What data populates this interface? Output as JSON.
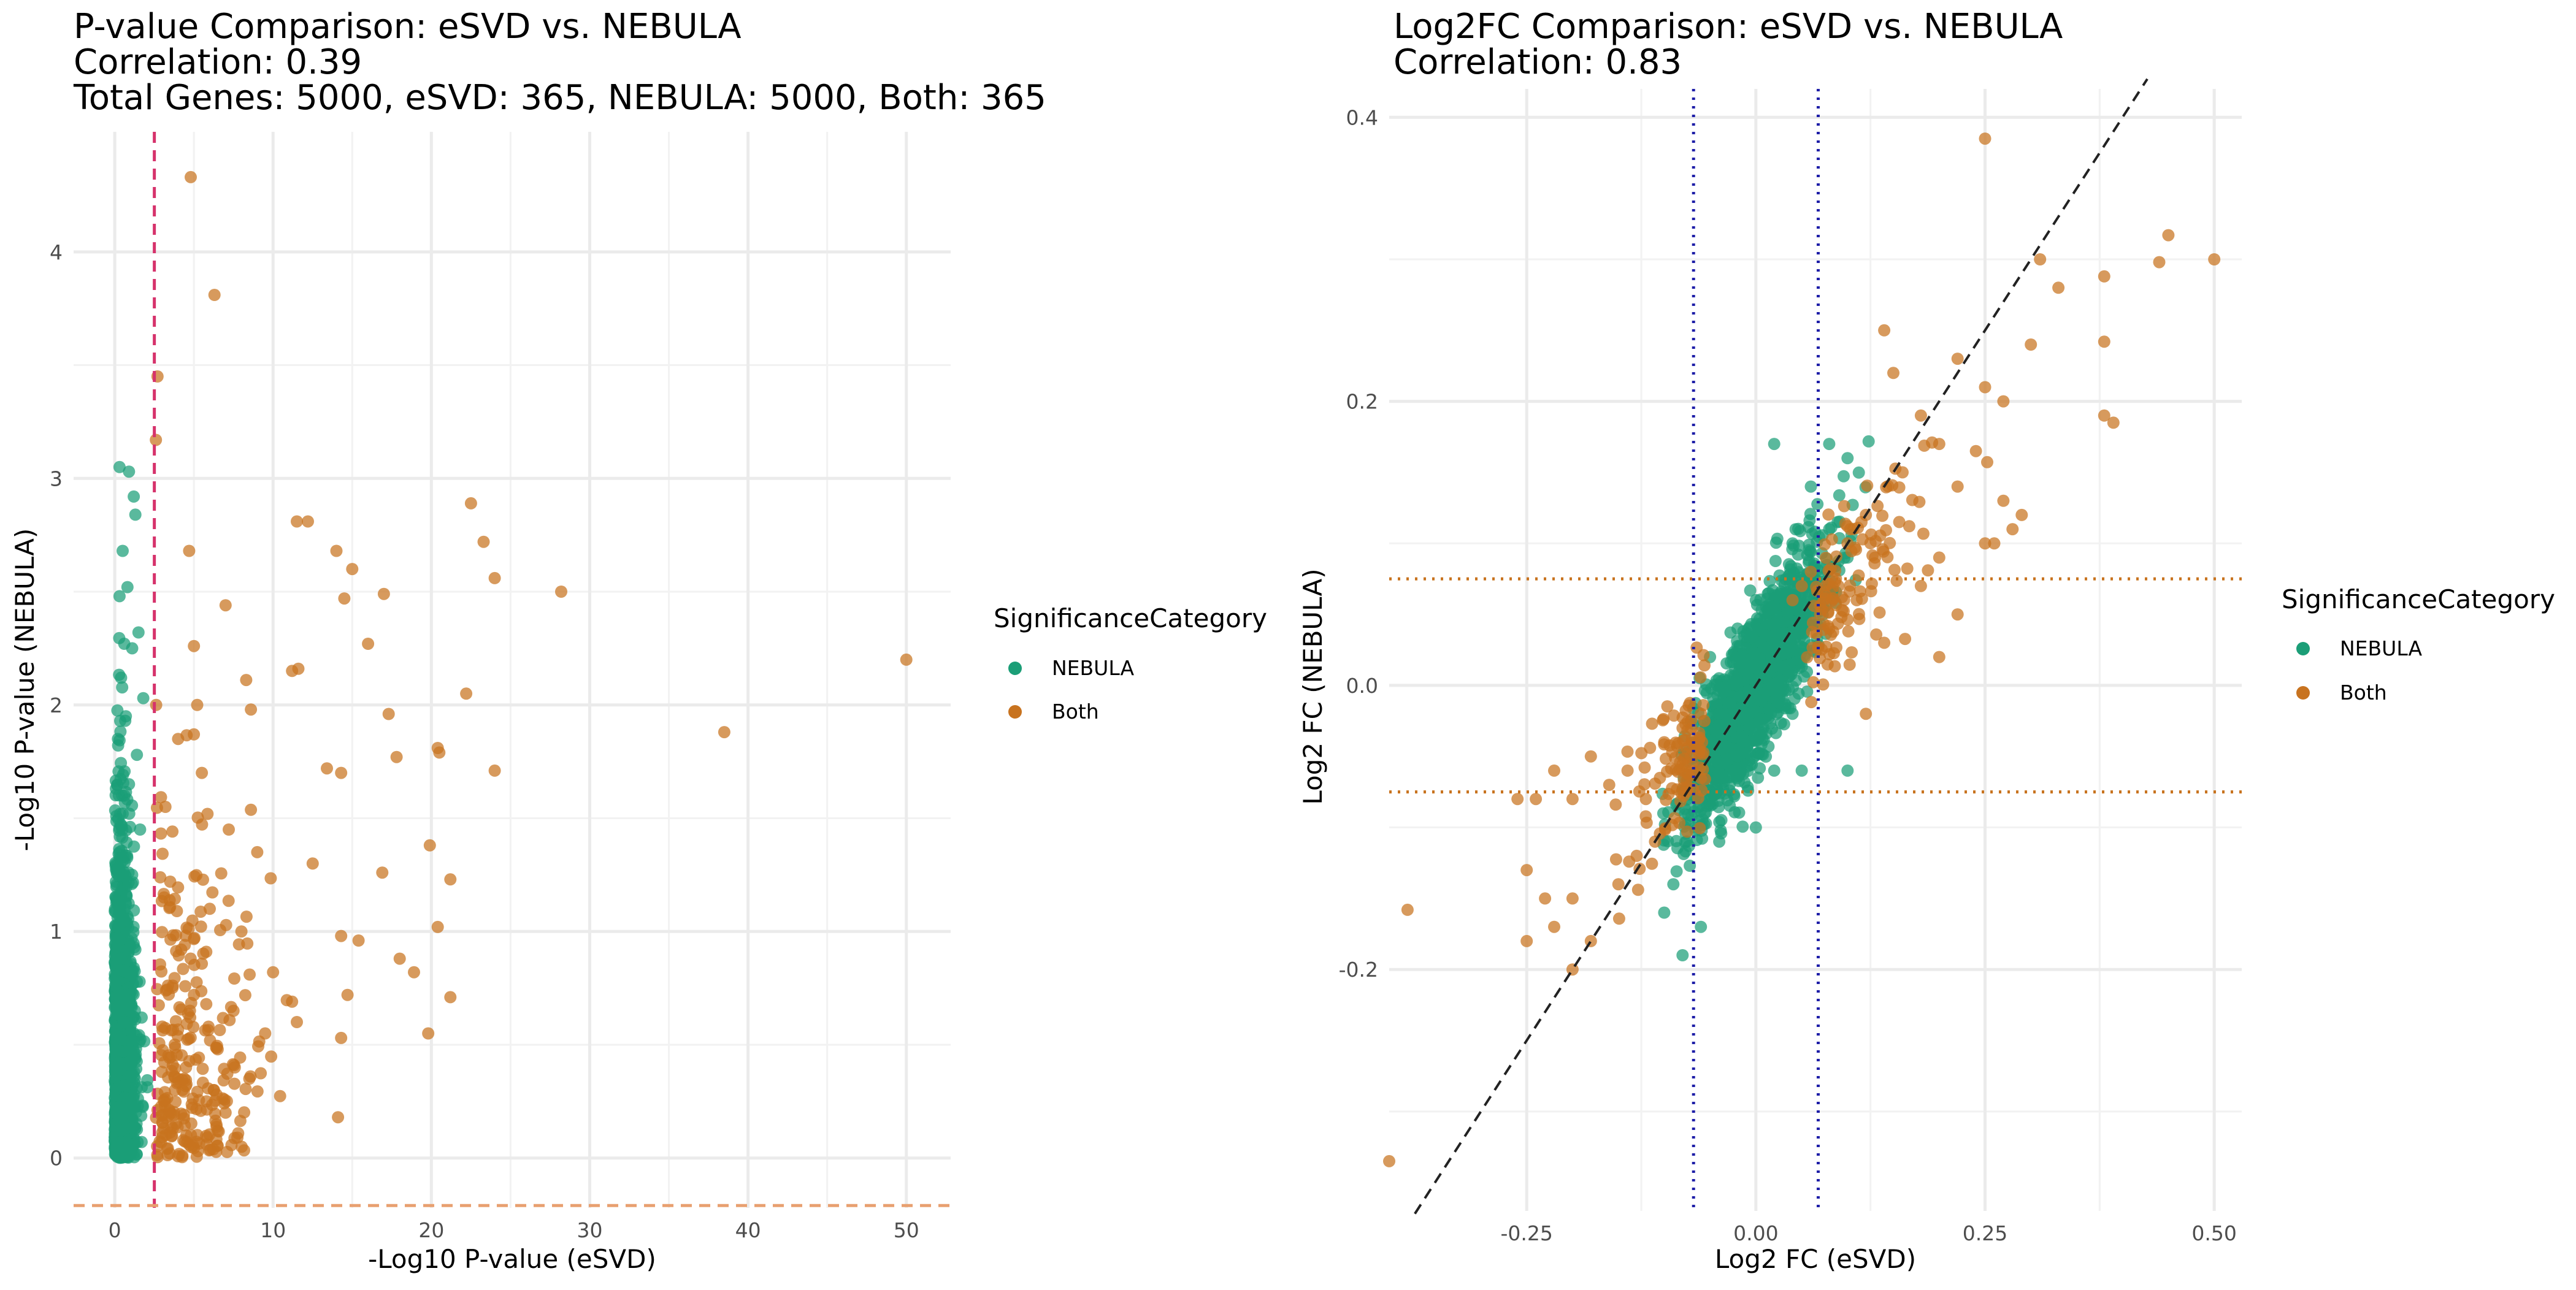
{
  "colors": {
    "nebula": "#1b9e77",
    "both": "#c8731f",
    "ref_line_red": "#d6336c",
    "ref_line_orange": "#e8a070",
    "blue_dotted": "#1f1fa8",
    "orange_dotted": "#c8731f",
    "diag": "#222222",
    "grid": "#ebebeb"
  },
  "chart_data": [
    {
      "type": "scatter",
      "title_lines": [
        "P-value Comparison: eSVD vs. NEBULA",
        "Correlation: 0.39",
        "Total Genes: 5000, eSVD: 365, NEBULA: 5000, Both: 365"
      ],
      "xlabel": "-Log10 P-value (eSVD)",
      "ylabel": "-Log10 P-value (NEBULA)",
      "xlim": [
        -2.6,
        52.8
      ],
      "ylim": [
        -0.22,
        4.53
      ],
      "x_ticks": [
        0,
        10,
        20,
        30,
        40,
        50
      ],
      "y_ticks": [
        0,
        1,
        2,
        3,
        4
      ],
      "grid": true,
      "ref_lines": [
        {
          "orientation": "vertical",
          "value": 2.5,
          "style": "dashed",
          "color": "#d6336c"
        },
        {
          "orientation": "horizontal",
          "value": -0.21,
          "style": "dashed",
          "color": "#e8a070"
        }
      ],
      "legend": {
        "title": "SignificanceCategory",
        "position": "right",
        "entries": [
          "NEBULA",
          "Both"
        ]
      },
      "series": [
        {
          "name": "NEBULA",
          "color": "#1b9e77",
          "summary": "≈4635 genes; x mostly in [0, 2.4], y in [0, 3.05]",
          "points": [
            [
              0.3,
              3.05
            ],
            [
              0.9,
              3.03
            ],
            [
              1.2,
              2.92
            ],
            [
              1.3,
              2.84
            ],
            [
              0.5,
              2.68
            ],
            [
              0.8,
              2.52
            ],
            [
              0.3,
              2.48
            ],
            [
              1.5,
              2.32
            ],
            [
              0.6,
              2.27
            ],
            [
              1.1,
              2.25
            ],
            [
              0.4,
              2.12
            ],
            [
              1.8,
              2.03
            ],
            [
              0.7,
              1.95
            ],
            [
              0.2,
              1.85
            ],
            [
              1.4,
              1.78
            ],
            [
              0.9,
              1.65
            ],
            [
              0.5,
              1.52
            ],
            [
              1.6,
              1.45
            ],
            [
              0.3,
              1.35
            ],
            [
              1.1,
              1.25
            ],
            [
              0.7,
              1.12
            ],
            [
              0.2,
              1.02
            ],
            [
              1.3,
              0.92
            ],
            [
              0.8,
              0.82
            ],
            [
              0.4,
              0.72
            ],
            [
              1.7,
              0.62
            ],
            [
              1.0,
              0.52
            ],
            [
              0.3,
              0.42
            ],
            [
              0.6,
              0.32
            ],
            [
              1.2,
              0.22
            ],
            [
              0.4,
              0.12
            ],
            [
              0.9,
              0.04
            ]
          ]
        },
        {
          "name": "Both",
          "color": "#c8731f",
          "summary": "365 genes; x in [2.5, 50]",
          "points": [
            [
              4.8,
              4.33
            ],
            [
              6.3,
              3.81
            ],
            [
              2.7,
              3.45
            ],
            [
              2.6,
              3.17
            ],
            [
              22.5,
              2.89
            ],
            [
              11.5,
              2.81
            ],
            [
              12.2,
              2.81
            ],
            [
              23.3,
              2.72
            ],
            [
              14.0,
              2.68
            ],
            [
              4.7,
              2.68
            ],
            [
              15.0,
              2.6
            ],
            [
              24.0,
              2.56
            ],
            [
              7.0,
              2.44
            ],
            [
              28.2,
              2.5
            ],
            [
              17.0,
              2.49
            ],
            [
              14.5,
              2.47
            ],
            [
              50.0,
              2.2
            ],
            [
              5.0,
              2.26
            ],
            [
              16.0,
              2.27
            ],
            [
              11.2,
              2.15
            ],
            [
              11.6,
              2.16
            ],
            [
              8.3,
              2.11
            ],
            [
              22.2,
              2.05
            ],
            [
              17.3,
              1.96
            ],
            [
              8.6,
              1.98
            ],
            [
              38.5,
              1.88
            ],
            [
              20.4,
              1.81
            ],
            [
              20.5,
              1.79
            ],
            [
              17.8,
              1.77
            ],
            [
              24.0,
              1.71
            ],
            [
              13.4,
              1.72
            ],
            [
              14.3,
              1.7
            ],
            [
              12.5,
              1.3
            ],
            [
              16.9,
              1.26
            ],
            [
              19.9,
              1.38
            ],
            [
              21.2,
              1.23
            ],
            [
              20.4,
              1.02
            ],
            [
              15.4,
              0.96
            ],
            [
              14.3,
              0.98
            ],
            [
              18.0,
              0.88
            ],
            [
              18.9,
              0.82
            ],
            [
              21.2,
              0.71
            ],
            [
              14.7,
              0.72
            ],
            [
              11.2,
              0.69
            ],
            [
              19.8,
              0.55
            ],
            [
              14.3,
              0.53
            ],
            [
              14.1,
              0.18
            ],
            [
              6.5,
              0.12
            ],
            [
              5.8,
              0.06
            ],
            [
              4.0,
              1.85
            ],
            [
              5.5,
              1.7
            ],
            [
              3.2,
              1.55
            ],
            [
              7.2,
              1.45
            ],
            [
              9.0,
              1.35
            ],
            [
              3.5,
              1.22
            ],
            [
              6.0,
              1.1
            ],
            [
              8.0,
              1.0
            ],
            [
              4.2,
              0.92
            ],
            [
              10.0,
              0.82
            ],
            [
              5.0,
              0.72
            ],
            [
              7.5,
              0.65
            ],
            [
              3.0,
              0.58
            ],
            [
              9.5,
              0.55
            ],
            [
              6.5,
              0.48
            ],
            [
              4.5,
              0.4
            ],
            [
              8.5,
              0.35
            ],
            [
              3.8,
              0.3
            ],
            [
              5.8,
              0.25
            ],
            [
              7.0,
              0.2
            ],
            [
              11.5,
              0.6
            ]
          ]
        }
      ]
    },
    {
      "type": "scatter",
      "title_lines": [
        "Log2FC Comparison: eSVD vs. NEBULA",
        "Correlation: 0.83"
      ],
      "xlabel": "Log2 FC (eSVD)",
      "ylabel": "Log2 FC (NEBULA)",
      "xlim": [
        -0.4,
        0.53
      ],
      "ylim": [
        -0.37,
        0.42
      ],
      "x_ticks": [
        "-0.25",
        "0.00",
        "0.25",
        "0.50"
      ],
      "x_tick_values": [
        -0.25,
        0.0,
        0.25,
        0.5
      ],
      "y_ticks": [
        "0.4",
        "0.2",
        "0.0",
        "-0.2"
      ],
      "y_tick_values": [
        0.4,
        0.2,
        0.0,
        -0.2
      ],
      "grid": true,
      "ref_lines": [
        {
          "orientation": "vertical",
          "value": -0.068,
          "style": "dotted",
          "color": "#1f1fa8"
        },
        {
          "orientation": "vertical",
          "value": 0.068,
          "style": "dotted",
          "color": "#1f1fa8"
        },
        {
          "orientation": "horizontal",
          "value": 0.075,
          "style": "dotted",
          "color": "#c8731f"
        },
        {
          "orientation": "horizontal",
          "value": -0.075,
          "style": "dotted",
          "color": "#c8731f"
        },
        {
          "orientation": "diagonal",
          "slope": 1,
          "intercept": 0,
          "style": "dashed",
          "color": "#222222"
        }
      ],
      "legend": {
        "title": "SignificanceCategory",
        "position": "right",
        "entries": [
          "NEBULA",
          "Both"
        ]
      },
      "series": [
        {
          "name": "NEBULA",
          "color": "#1b9e77",
          "summary": "dense cloud along y≈x, x in [-0.12, 0.12]",
          "points": [
            [
              -0.08,
              -0.19
            ],
            [
              -0.06,
              -0.17
            ],
            [
              0.02,
              0.17
            ],
            [
              0.08,
              0.17
            ],
            [
              0.1,
              0.16
            ],
            [
              0.06,
              0.14
            ],
            [
              0.08,
              0.11
            ],
            [
              0.1,
              0.09
            ],
            [
              0.04,
              0.1
            ],
            [
              0.0,
              0.06
            ],
            [
              -0.02,
              0.04
            ],
            [
              0.02,
              0.02
            ],
            [
              0.0,
              0.0
            ],
            [
              -0.04,
              -0.02
            ],
            [
              0.04,
              -0.02
            ],
            [
              -0.02,
              -0.05
            ],
            [
              0.02,
              -0.06
            ],
            [
              -0.06,
              -0.08
            ],
            [
              -0.04,
              -0.11
            ],
            [
              0.0,
              -0.1
            ],
            [
              -0.09,
              -0.14
            ],
            [
              -0.1,
              -0.16
            ],
            [
              0.05,
              -0.06
            ],
            [
              0.07,
              0.06
            ],
            [
              -0.05,
              0.02
            ],
            [
              0.1,
              -0.06
            ]
          ]
        },
        {
          "name": "Both",
          "color": "#c8731f",
          "summary": "365 genes at the tails of the eSVD distribution",
          "points": [
            [
              -0.4,
              -0.335
            ],
            [
              -0.38,
              -0.158
            ],
            [
              0.25,
              0.385
            ],
            [
              0.5,
              0.3
            ],
            [
              0.45,
              0.317
            ],
            [
              0.44,
              0.298
            ],
            [
              0.38,
              0.288
            ],
            [
              0.31,
              0.3
            ],
            [
              0.33,
              0.28
            ],
            [
              0.38,
              0.242
            ],
            [
              0.3,
              0.24
            ],
            [
              0.38,
              0.19
            ],
            [
              0.39,
              0.185
            ],
            [
              0.14,
              0.25
            ],
            [
              0.22,
              0.23
            ],
            [
              0.15,
              0.22
            ],
            [
              0.25,
              0.21
            ],
            [
              0.27,
              0.2
            ],
            [
              0.18,
              0.19
            ],
            [
              0.2,
              0.17
            ],
            [
              0.24,
              0.165
            ],
            [
              0.16,
              0.15
            ],
            [
              0.22,
              0.14
            ],
            [
              0.27,
              0.13
            ],
            [
              0.25,
              0.1
            ],
            [
              0.2,
              0.09
            ],
            [
              0.18,
              0.07
            ],
            [
              0.22,
              0.05
            ],
            [
              0.28,
              0.11
            ],
            [
              0.29,
              0.12
            ],
            [
              0.26,
              0.1
            ],
            [
              0.12,
              0.12
            ],
            [
              0.1,
              0.1
            ],
            [
              0.13,
              0.09
            ],
            [
              0.09,
              0.07
            ],
            [
              0.11,
              0.06
            ],
            [
              0.07,
              0.05
            ],
            [
              0.08,
              0.04
            ],
            [
              0.14,
              0.03
            ],
            [
              0.2,
              0.02
            ],
            [
              0.12,
              -0.02
            ],
            [
              -0.24,
              -0.08
            ],
            [
              -0.26,
              -0.08
            ],
            [
              -0.2,
              -0.08
            ],
            [
              -0.22,
              -0.06
            ],
            [
              -0.18,
              -0.05
            ],
            [
              -0.16,
              -0.07
            ],
            [
              -0.14,
              -0.06
            ],
            [
              -0.12,
              -0.08
            ],
            [
              -0.1,
              -0.04
            ],
            [
              -0.08,
              -0.03
            ],
            [
              -0.06,
              -0.02
            ],
            [
              -0.07,
              -0.06
            ],
            [
              -0.25,
              -0.13
            ],
            [
              -0.23,
              -0.15
            ],
            [
              -0.22,
              -0.17
            ],
            [
              -0.25,
              -0.18
            ],
            [
              -0.2,
              -0.2
            ],
            [
              -0.18,
              -0.18
            ],
            [
              -0.2,
              -0.15
            ],
            [
              -0.15,
              -0.14
            ],
            [
              -0.13,
              -0.12
            ],
            [
              -0.11,
              -0.11
            ],
            [
              0.05,
              0.07
            ],
            [
              0.06,
              0.08
            ],
            [
              0.04,
              0.06
            ]
          ]
        }
      ]
    }
  ]
}
